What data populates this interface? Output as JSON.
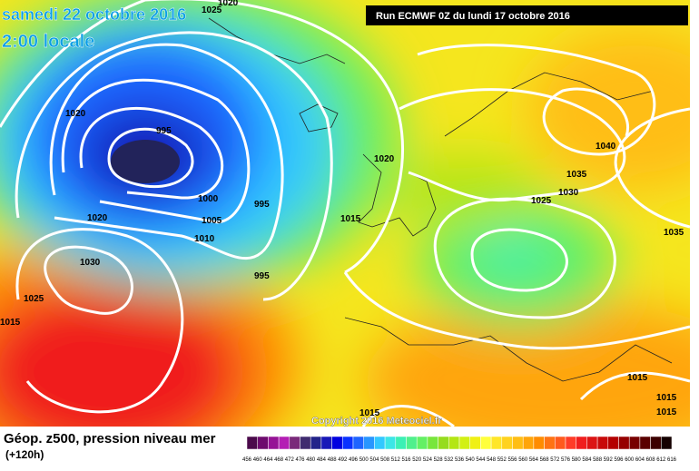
{
  "header": {
    "date": "samedi 22 octobre 2016",
    "time": "2:00 locale",
    "run": "Run ECMWF 0Z du lundi 17 octobre 2016"
  },
  "isobar_labels": [
    "1020",
    "1025",
    "1020",
    "995",
    "1000",
    "1005",
    "1010",
    "995",
    "995",
    "1020",
    "1030",
    "1025",
    "1015",
    "1020",
    "1015",
    "1025",
    "1030",
    "1035",
    "1040",
    "1035",
    "1015",
    "1015",
    "1015",
    "1015"
  ],
  "copyright": "Copyright 2016 Meteociel.fr",
  "legend": {
    "title": "Géop. z500, pression niveau mer",
    "subtitle": "(+120h)",
    "colors": [
      "#4b0a4b",
      "#6e0b6e",
      "#961396",
      "#b41eb4",
      "#7a2a7a",
      "#402c70",
      "#22238a",
      "#1818b8",
      "#0000e0",
      "#0a32ff",
      "#1e64ff",
      "#2896ff",
      "#32c8ff",
      "#3ce6e6",
      "#3cf0b4",
      "#50f08c",
      "#64f064",
      "#78e63c",
      "#96dc1e",
      "#b4e614",
      "#d2f014",
      "#f0f014",
      "#ffff3c",
      "#ffe628",
      "#ffd21e",
      "#ffbe14",
      "#ffa50a",
      "#ff8c00",
      "#ff7314",
      "#ff5a1e",
      "#ff3c28",
      "#f01e1e",
      "#dc1414",
      "#c80a0a",
      "#b40000",
      "#960000",
      "#780000",
      "#5a0000",
      "#3c0000",
      "#140000"
    ],
    "labels": [
      "456",
      "460",
      "464",
      "468",
      "472",
      "476",
      "480",
      "484",
      "488",
      "492",
      "496",
      "500",
      "504",
      "508",
      "512",
      "516",
      "520",
      "524",
      "528",
      "532",
      "536",
      "540",
      "544",
      "548",
      "552",
      "556",
      "560",
      "564",
      "568",
      "572",
      "576",
      "580",
      "584",
      "588",
      "592",
      "596",
      "600",
      "604",
      "608",
      "612",
      "616"
    ]
  }
}
